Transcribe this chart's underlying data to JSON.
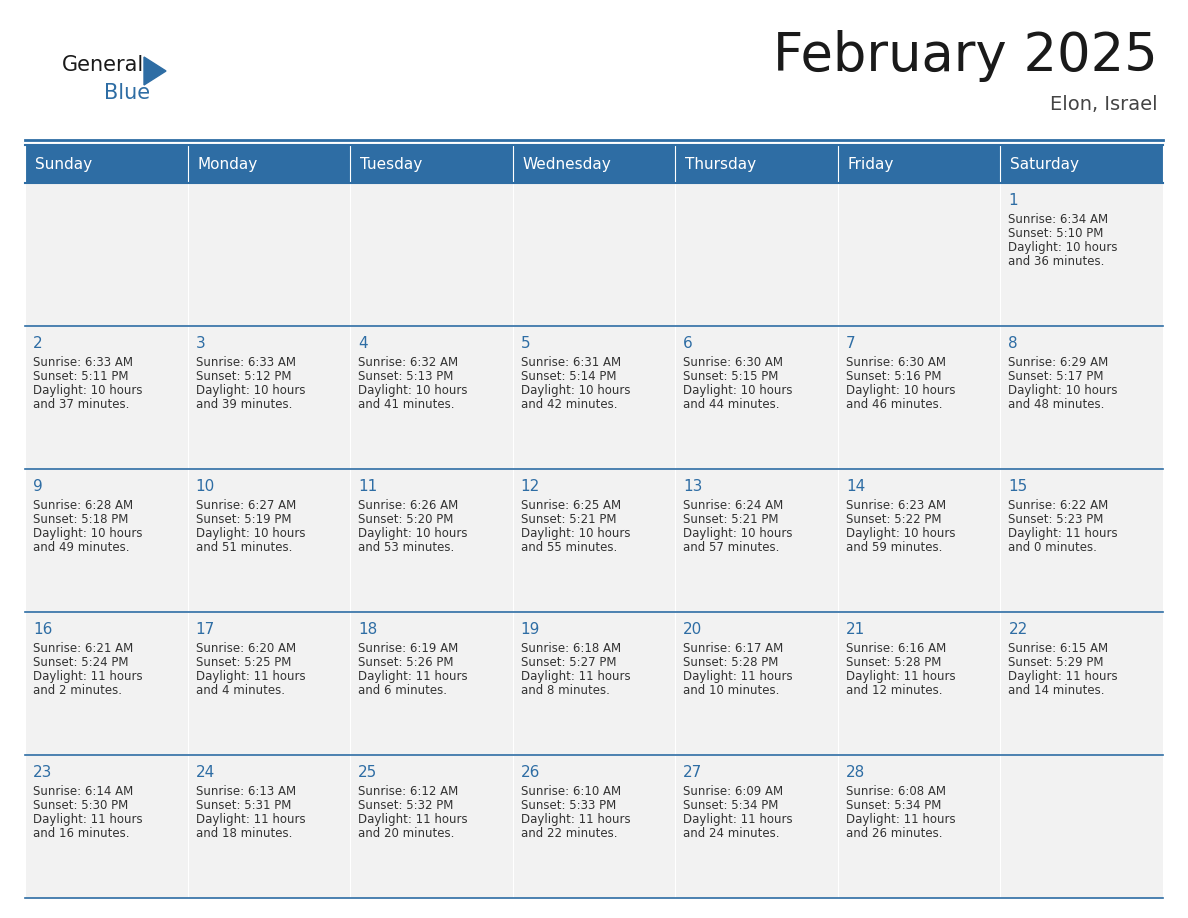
{
  "title": "February 2025",
  "subtitle": "Elon, Israel",
  "days_of_week": [
    "Sunday",
    "Monday",
    "Tuesday",
    "Wednesday",
    "Thursday",
    "Friday",
    "Saturday"
  ],
  "header_bg": "#2E6DA4",
  "header_text_color": "#FFFFFF",
  "cell_bg": "#F0F0F0",
  "border_color": "#2E6DA4",
  "day_num_color": "#2E6DA4",
  "cell_text_color": "#333333",
  "logo_general_color": "#1a1a1a",
  "logo_blue_color": "#2E6DA4",
  "calendar": [
    [
      null,
      null,
      null,
      null,
      null,
      null,
      {
        "day": 1,
        "sunrise": "6:34 AM",
        "sunset": "5:10 PM",
        "daylight": "10 hours",
        "daylight2": "and 36 minutes."
      }
    ],
    [
      {
        "day": 2,
        "sunrise": "6:33 AM",
        "sunset": "5:11 PM",
        "daylight": "10 hours",
        "daylight2": "and 37 minutes."
      },
      {
        "day": 3,
        "sunrise": "6:33 AM",
        "sunset": "5:12 PM",
        "daylight": "10 hours",
        "daylight2": "and 39 minutes."
      },
      {
        "day": 4,
        "sunrise": "6:32 AM",
        "sunset": "5:13 PM",
        "daylight": "10 hours",
        "daylight2": "and 41 minutes."
      },
      {
        "day": 5,
        "sunrise": "6:31 AM",
        "sunset": "5:14 PM",
        "daylight": "10 hours",
        "daylight2": "and 42 minutes."
      },
      {
        "day": 6,
        "sunrise": "6:30 AM",
        "sunset": "5:15 PM",
        "daylight": "10 hours",
        "daylight2": "and 44 minutes."
      },
      {
        "day": 7,
        "sunrise": "6:30 AM",
        "sunset": "5:16 PM",
        "daylight": "10 hours",
        "daylight2": "and 46 minutes."
      },
      {
        "day": 8,
        "sunrise": "6:29 AM",
        "sunset": "5:17 PM",
        "daylight": "10 hours",
        "daylight2": "and 48 minutes."
      }
    ],
    [
      {
        "day": 9,
        "sunrise": "6:28 AM",
        "sunset": "5:18 PM",
        "daylight": "10 hours",
        "daylight2": "and 49 minutes."
      },
      {
        "day": 10,
        "sunrise": "6:27 AM",
        "sunset": "5:19 PM",
        "daylight": "10 hours",
        "daylight2": "and 51 minutes."
      },
      {
        "day": 11,
        "sunrise": "6:26 AM",
        "sunset": "5:20 PM",
        "daylight": "10 hours",
        "daylight2": "and 53 minutes."
      },
      {
        "day": 12,
        "sunrise": "6:25 AM",
        "sunset": "5:21 PM",
        "daylight": "10 hours",
        "daylight2": "and 55 minutes."
      },
      {
        "day": 13,
        "sunrise": "6:24 AM",
        "sunset": "5:21 PM",
        "daylight": "10 hours",
        "daylight2": "and 57 minutes."
      },
      {
        "day": 14,
        "sunrise": "6:23 AM",
        "sunset": "5:22 PM",
        "daylight": "10 hours",
        "daylight2": "and 59 minutes."
      },
      {
        "day": 15,
        "sunrise": "6:22 AM",
        "sunset": "5:23 PM",
        "daylight": "11 hours",
        "daylight2": "and 0 minutes."
      }
    ],
    [
      {
        "day": 16,
        "sunrise": "6:21 AM",
        "sunset": "5:24 PM",
        "daylight": "11 hours",
        "daylight2": "and 2 minutes."
      },
      {
        "day": 17,
        "sunrise": "6:20 AM",
        "sunset": "5:25 PM",
        "daylight": "11 hours",
        "daylight2": "and 4 minutes."
      },
      {
        "day": 18,
        "sunrise": "6:19 AM",
        "sunset": "5:26 PM",
        "daylight": "11 hours",
        "daylight2": "and 6 minutes."
      },
      {
        "day": 19,
        "sunrise": "6:18 AM",
        "sunset": "5:27 PM",
        "daylight": "11 hours",
        "daylight2": "and 8 minutes."
      },
      {
        "day": 20,
        "sunrise": "6:17 AM",
        "sunset": "5:28 PM",
        "daylight": "11 hours",
        "daylight2": "and 10 minutes."
      },
      {
        "day": 21,
        "sunrise": "6:16 AM",
        "sunset": "5:28 PM",
        "daylight": "11 hours",
        "daylight2": "and 12 minutes."
      },
      {
        "day": 22,
        "sunrise": "6:15 AM",
        "sunset": "5:29 PM",
        "daylight": "11 hours",
        "daylight2": "and 14 minutes."
      }
    ],
    [
      {
        "day": 23,
        "sunrise": "6:14 AM",
        "sunset": "5:30 PM",
        "daylight": "11 hours",
        "daylight2": "and 16 minutes."
      },
      {
        "day": 24,
        "sunrise": "6:13 AM",
        "sunset": "5:31 PM",
        "daylight": "11 hours",
        "daylight2": "and 18 minutes."
      },
      {
        "day": 25,
        "sunrise": "6:12 AM",
        "sunset": "5:32 PM",
        "daylight": "11 hours",
        "daylight2": "and 20 minutes."
      },
      {
        "day": 26,
        "sunrise": "6:10 AM",
        "sunset": "5:33 PM",
        "daylight": "11 hours",
        "daylight2": "and 22 minutes."
      },
      {
        "day": 27,
        "sunrise": "6:09 AM",
        "sunset": "5:34 PM",
        "daylight": "11 hours",
        "daylight2": "and 24 minutes."
      },
      {
        "day": 28,
        "sunrise": "6:08 AM",
        "sunset": "5:34 PM",
        "daylight": "11 hours",
        "daylight2": "and 26 minutes."
      },
      null
    ]
  ]
}
